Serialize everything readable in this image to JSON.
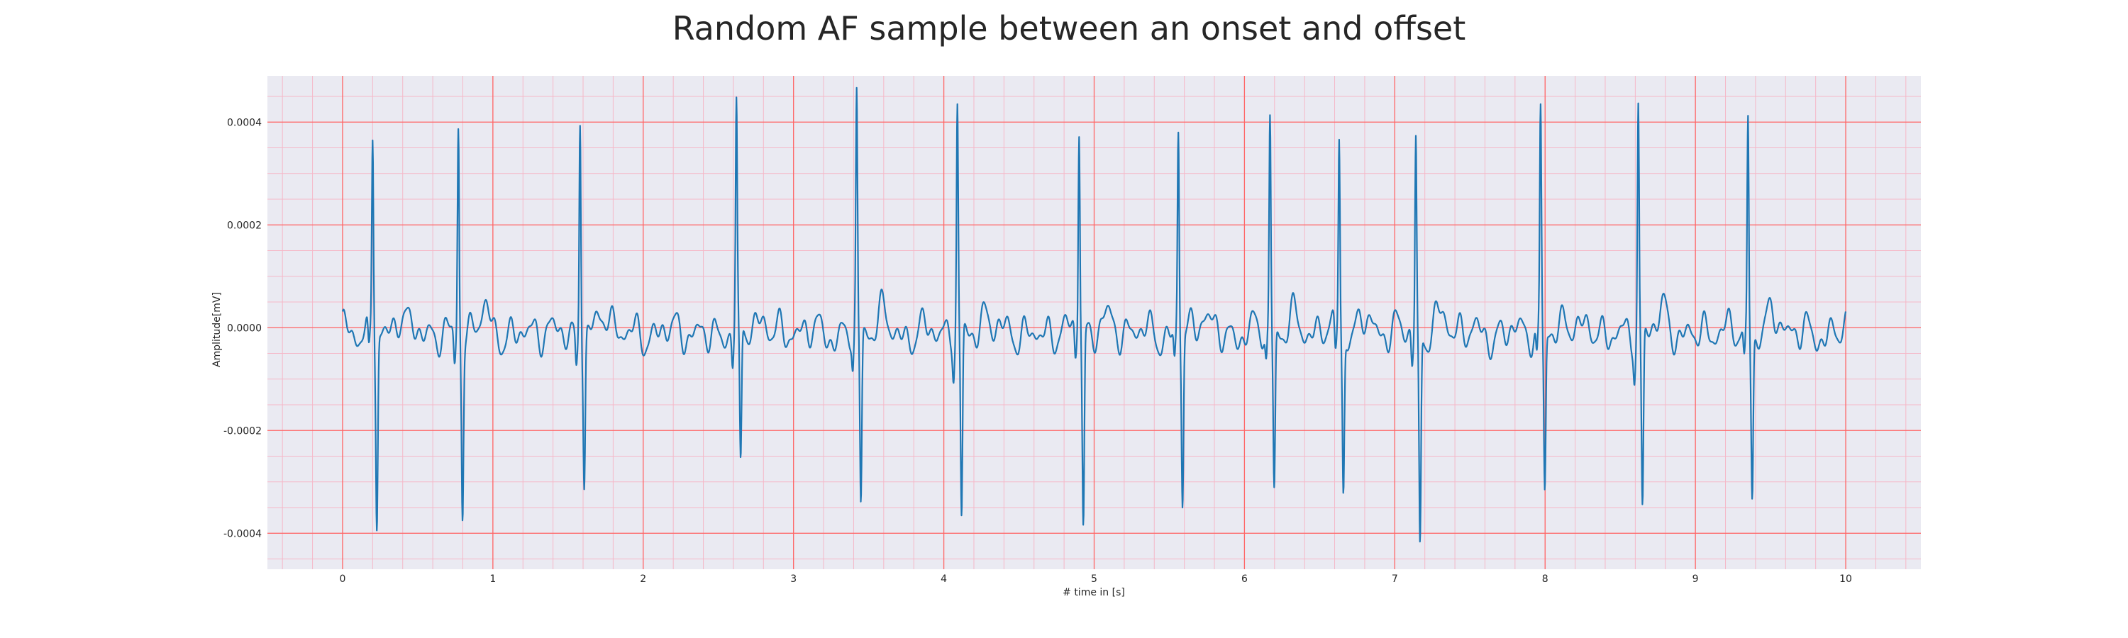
{
  "chart_data": {
    "type": "line",
    "title": "Random AF sample between an onset and offset",
    "xlabel": "# time in [s]",
    "ylabel": "Amplitude[mV]",
    "xlim": [
      -0.5,
      10.5
    ],
    "ylim": [
      -0.00047,
      0.00049
    ],
    "x_ticks": [
      0,
      1,
      2,
      3,
      4,
      5,
      6,
      7,
      8,
      9,
      10
    ],
    "x_tick_labels": [
      "0",
      "1",
      "2",
      "3",
      "4",
      "5",
      "6",
      "7",
      "8",
      "9",
      "10"
    ],
    "y_ticks": [
      0.0004,
      0.0002,
      0.0,
      -0.0002,
      -0.0004
    ],
    "y_tick_labels": [
      "0.0004",
      "0.0002",
      "0.0000",
      "-0.0002",
      "-0.0004"
    ],
    "grid": {
      "major": true,
      "minor": true
    },
    "series": [
      {
        "line_color": "#1f77b4",
        "x_range": [
          0,
          10
        ],
        "r_peaks": [
          {
            "t": 0.2,
            "peak": 0.00039,
            "trough": -0.00037
          },
          {
            "t": 0.77,
            "peak": 0.00041,
            "trough": -0.00034
          },
          {
            "t": 1.58,
            "peak": 0.00044,
            "trough": -0.00028
          },
          {
            "t": 2.62,
            "peak": 0.00043,
            "trough": -0.000285
          },
          {
            "t": 3.42,
            "peak": 0.000445,
            "trough": -0.00034
          },
          {
            "t": 4.09,
            "peak": 0.000435,
            "trough": -0.000375
          },
          {
            "t": 4.9,
            "peak": 0.00041,
            "trough": -0.000375
          },
          {
            "t": 5.56,
            "peak": 0.000395,
            "trough": -0.00033
          },
          {
            "t": 6.17,
            "peak": 0.000415,
            "trough": -0.000305
          },
          {
            "t": 6.63,
            "peak": 0.00039,
            "trough": -0.000305
          },
          {
            "t": 7.14,
            "peak": 0.00039,
            "trough": -0.00042
          },
          {
            "t": 7.97,
            "peak": 0.00043,
            "trough": -0.000315
          },
          {
            "t": 8.62,
            "peak": 0.000445,
            "trough": -0.00035
          },
          {
            "t": 9.35,
            "peak": 0.00043,
            "trough": -0.000305
          }
        ],
        "baseline_amplitude": 4e-05
      }
    ]
  },
  "colors": {
    "background": "#eaeaf2",
    "major_grid": "#ff6666",
    "minor_grid": "#f5b8c8",
    "line": "#1f77b4",
    "text": "#262626"
  }
}
